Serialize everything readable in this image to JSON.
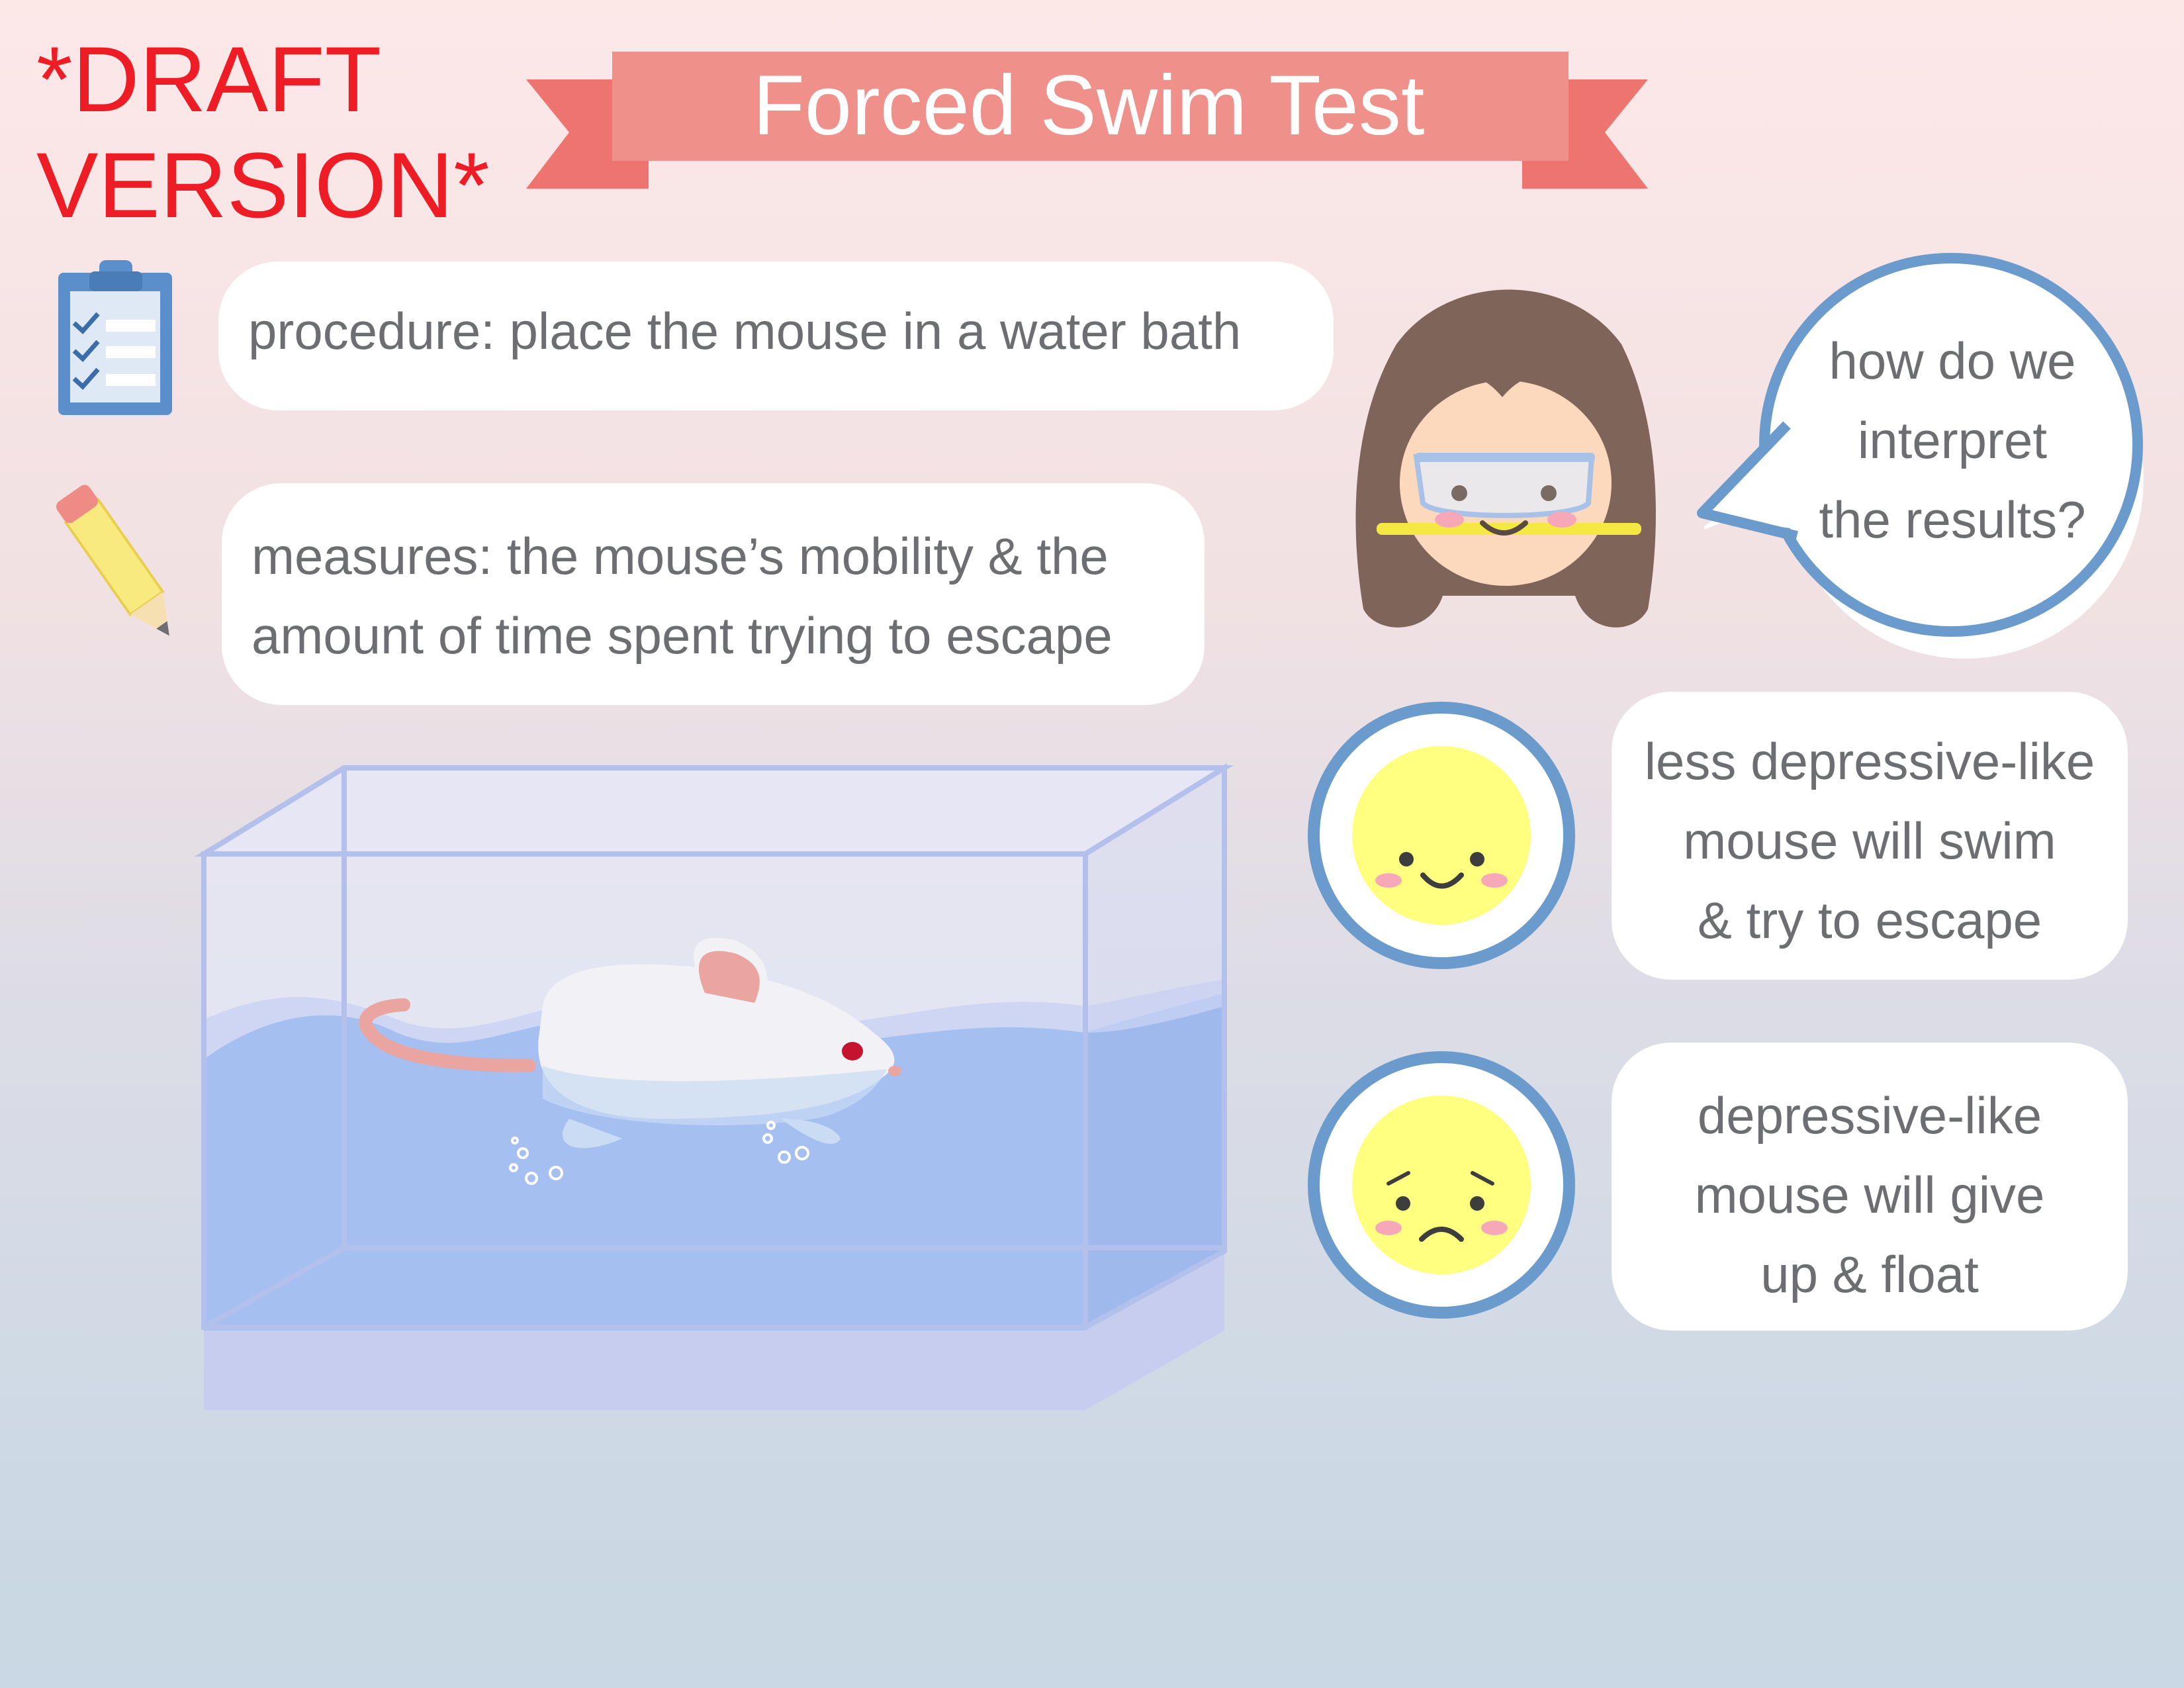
{
  "watermark": {
    "text": "*DRAFT\nVERSION*",
    "color": "#ee1c24"
  },
  "title": {
    "text": "Forced Swim Test",
    "banner_color": "#f0908a"
  },
  "procedure": {
    "text": "procedure: place the mouse in a water bath",
    "icon": "clipboard-icon"
  },
  "measures": {
    "text": "measures: the mouse’s mobility & the\namount of time spent trying to escape",
    "icon": "pencil-icon"
  },
  "question": {
    "text": "how do we\ninterpret\nthe results?"
  },
  "results": [
    {
      "face": "happy",
      "text": "less depressive-like\nmouse will swim\n& try to escape"
    },
    {
      "face": "sad",
      "text": "depressive-like\nmouse will give\nup & float"
    }
  ],
  "colors": {
    "bubble_outline": "#6a9bcc",
    "face_yellow": "#ffff80",
    "water": "#a4bff0",
    "text_gray": "#6d6e71"
  }
}
